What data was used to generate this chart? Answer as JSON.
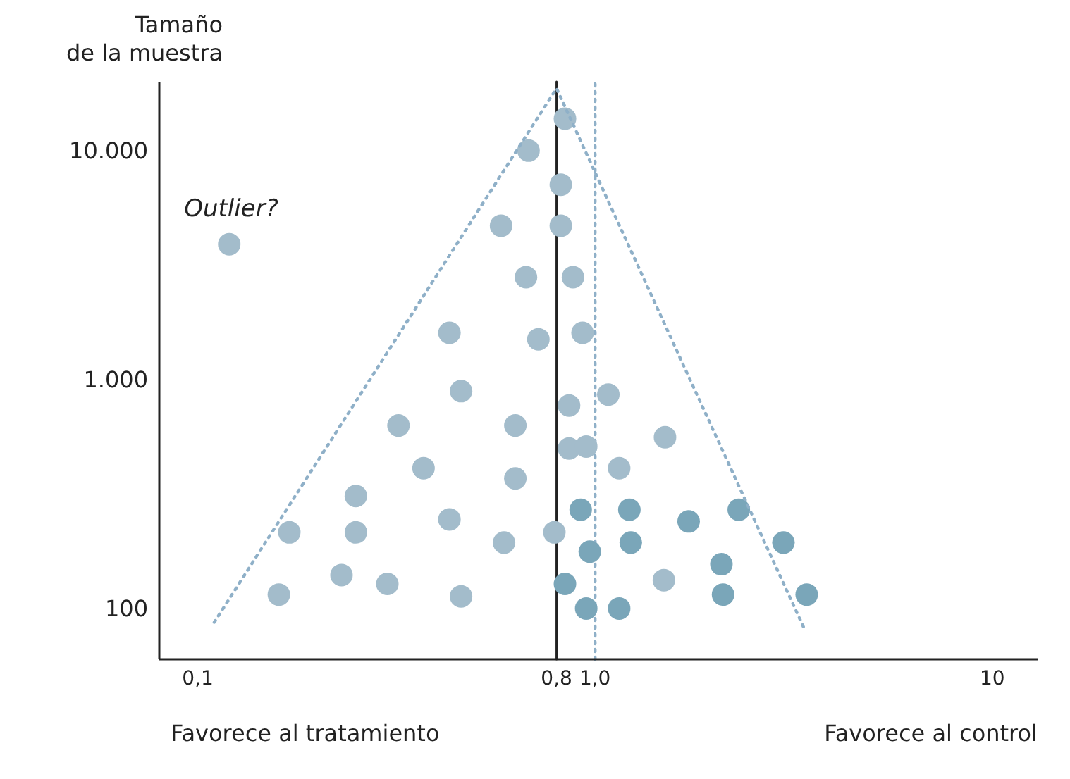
{
  "chart_data": {
    "type": "scatter",
    "ylabel": "Tamaño\nde la muestra",
    "log": "xy",
    "xlim": [
      0.08,
      13
    ],
    "ylim": [
      60,
      20000
    ],
    "xticks": [
      {
        "value": 0.1,
        "label": "0,1"
      },
      {
        "value": 0.8,
        "label": "0,8"
      },
      {
        "value": 1,
        "label": "1,0"
      },
      10
    ],
    "yticks": [
      100,
      {
        "value": 1000,
        "label": "1.000"
      },
      {
        "value": 10000,
        "label": "10.000"
      }
    ],
    "grid": false,
    "marker": "circle",
    "series": [
      {
        "color": "#a3bccb",
        "x": [
          0.84,
          0.68,
          0.82,
          0.58,
          0.82,
          0.12,
          0.67,
          0.88,
          0.43,
          0.93,
          0.72,
          0.46,
          1.08,
          0.86,
          0.32,
          0.63,
          1.5,
          0.86,
          0.95,
          0.37,
          1.15,
          0.63,
          0.25,
          0.17,
          0.25,
          0.43,
          0.79,
          0.59,
          0.23,
          0.3,
          1.49,
          0.16,
          0.46
        ],
        "values": [
          13800,
          10000,
          7100,
          4700,
          4700,
          3900,
          2800,
          2800,
          1600,
          1600,
          1500,
          890,
          860,
          770,
          630,
          630,
          560,
          500,
          510,
          410,
          410,
          370,
          310,
          215,
          215,
          245,
          215,
          194,
          140,
          128,
          133,
          115,
          113
        ]
      },
      {
        "color": "#7aa6b9",
        "x": [
          0.92,
          1.22,
          2.3,
          1.72,
          0.97,
          1.23,
          2.98,
          2.08,
          0.84,
          2.1,
          3.41,
          0.95,
          1.15
        ],
        "values": [
          270,
          270,
          270,
          240,
          177,
          194,
          194,
          156,
          128,
          115,
          115,
          100,
          100
        ]
      },
      {
        "type": "line",
        "color": "#8fb0c8",
        "line_style": "dotted",
        "marker": "none",
        "x": [
          0.11,
          0.8,
          3.38
        ],
        "values": [
          87,
          18700,
          80
        ]
      }
    ],
    "ref_lines": [
      {
        "axis": "x",
        "value": 0.8,
        "color": "#222222",
        "line_style": "solid"
      },
      {
        "axis": "x",
        "value": 1,
        "color": "#8fb0c8",
        "line_style": "dotted"
      }
    ],
    "annotations": [
      {
        "text": "Outlier?",
        "x": 0.12,
        "y": 3900
      },
      "Favorece al tratamiento",
      "Favorece al control"
    ]
  }
}
